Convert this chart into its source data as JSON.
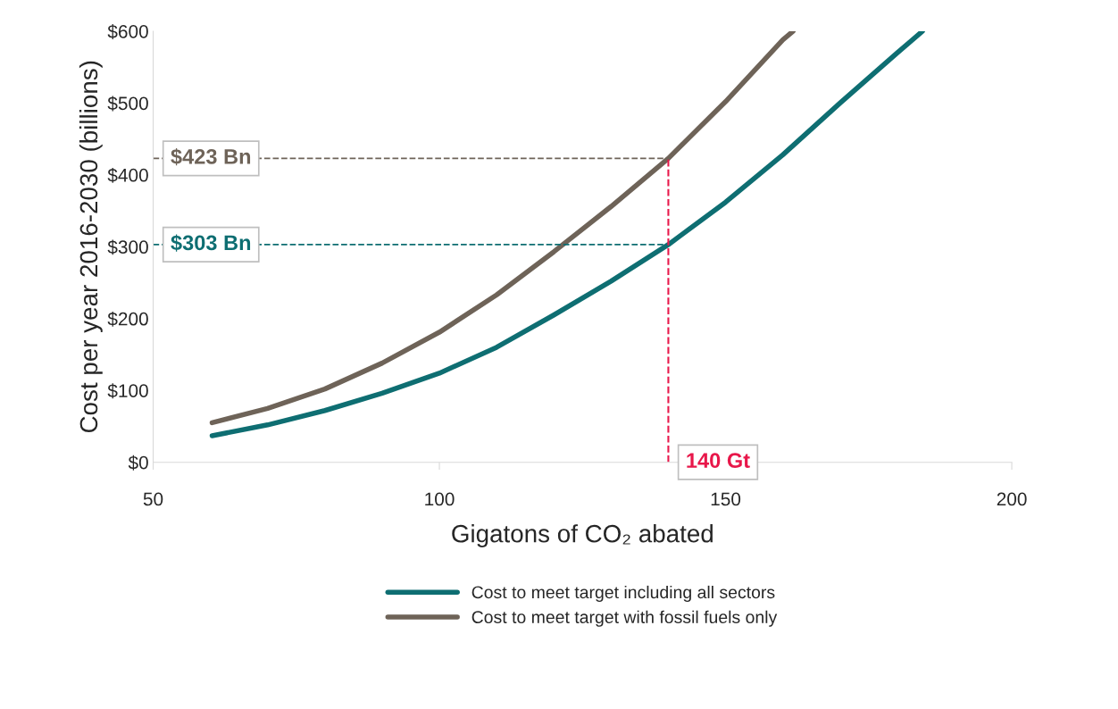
{
  "chart_data": {
    "type": "line",
    "xlabel": "Gigatons of CO₂ abated",
    "ylabel": "Cost per year 2016-2030 (billions)",
    "series": [
      {
        "name": "Cost to meet target including all sectors",
        "color": "#0e6e72",
        "x": [
          60.3,
          70,
          80,
          90,
          100,
          110,
          120,
          130,
          140,
          150,
          160,
          170,
          180,
          184.4
        ],
        "values": [
          37,
          52,
          72,
          96,
          124,
          160,
          205,
          252,
          303,
          362,
          428,
          500,
          570,
          600
        ]
      },
      {
        "name": "Cost to meet target with fossil fuels only",
        "color": "#6e6358",
        "x": [
          60.3,
          70,
          80,
          90,
          100,
          110,
          120,
          130,
          140,
          150,
          160,
          161.8
        ],
        "values": [
          55,
          75,
          102,
          138,
          181,
          233,
          293,
          356,
          423,
          502,
          588,
          600
        ]
      }
    ],
    "xlim": [
      50,
      200
    ],
    "xticks": [
      50,
      100,
      150,
      200
    ],
    "ylim": [
      0,
      600
    ],
    "yticks": [
      {
        "value": 0,
        "label": "$0"
      },
      {
        "value": 100,
        "label": "$100"
      },
      {
        "value": 200,
        "label": "$200"
      },
      {
        "value": 300,
        "label": "$300"
      },
      {
        "value": 400,
        "label": "$400"
      },
      {
        "value": 500,
        "label": "$500"
      },
      {
        "value": 600,
        "label": "$600"
      }
    ],
    "annotations": [
      {
        "text": "$423 Bn",
        "x": 140,
        "y": 423
      },
      {
        "text": "$303 Bn",
        "x": 140,
        "y": 303
      }
    ],
    "ref_lines": [
      {
        "axis": "x",
        "value": 140,
        "label": "140 Gt",
        "color": "#e8174a",
        "line_style": "dashed"
      }
    ],
    "grid": false,
    "legend": "bottom",
    "marker": "none",
    "line_style": "solid"
  }
}
